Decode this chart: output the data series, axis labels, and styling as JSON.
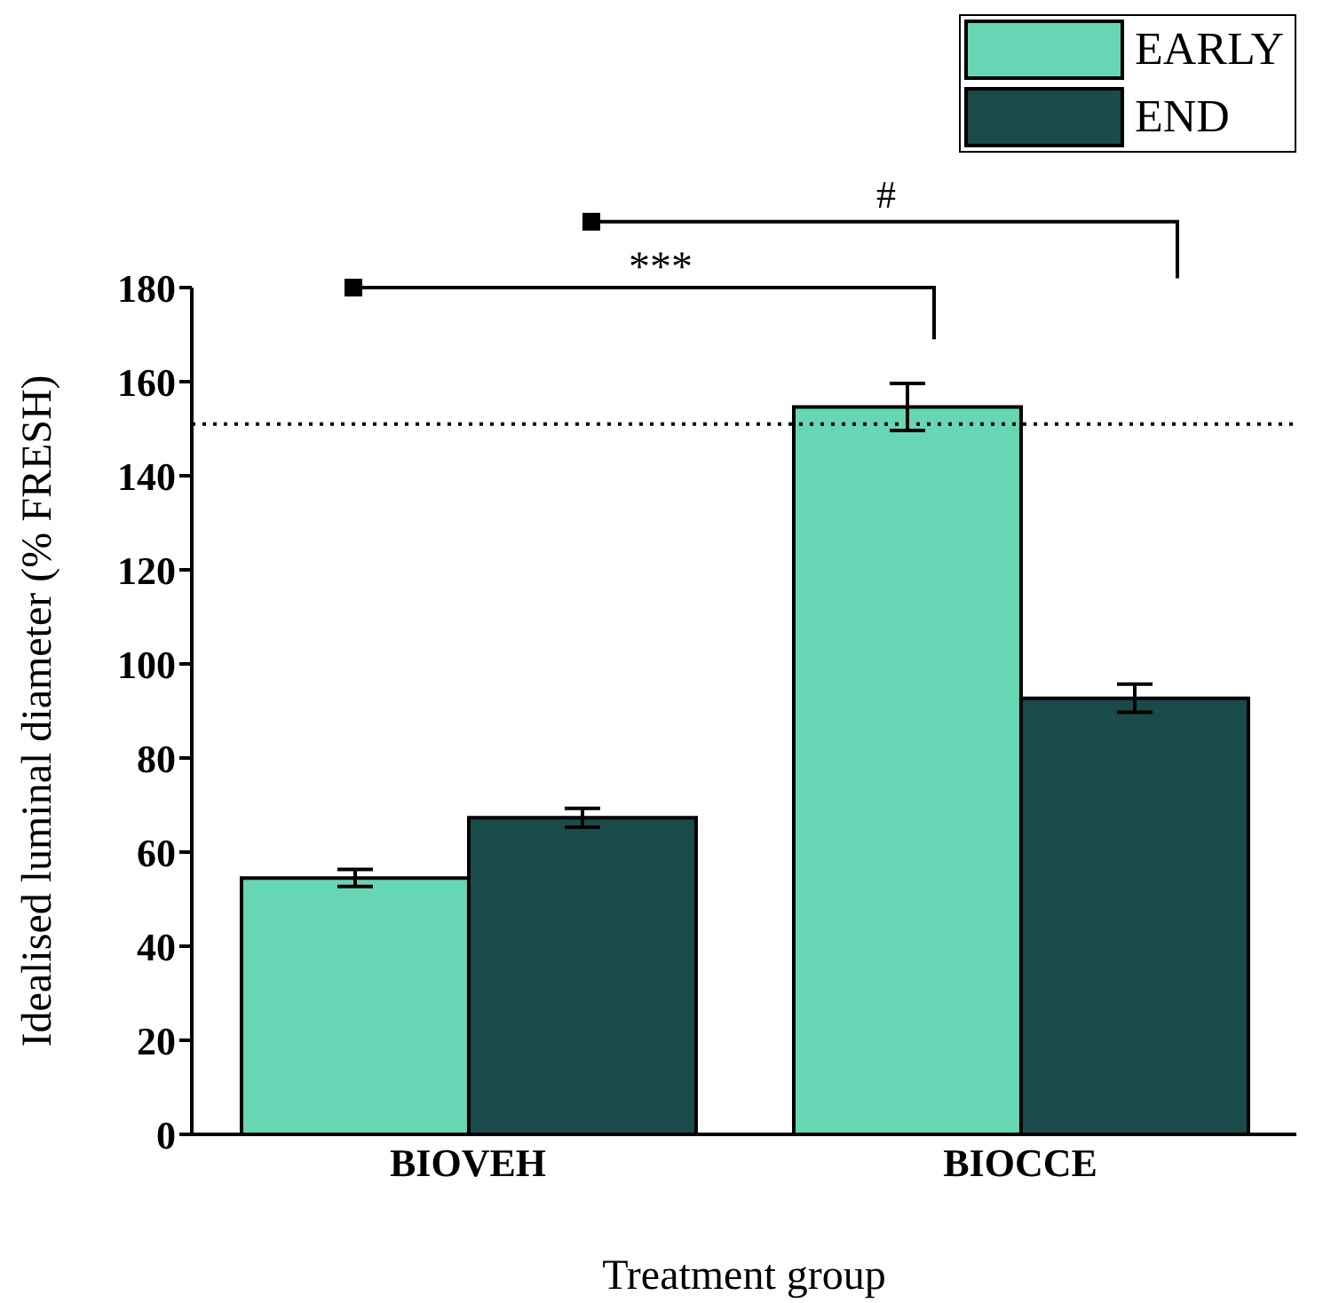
{
  "chart_data": {
    "type": "bar",
    "xlabel": "Treatment group",
    "ylabel": "Idealised luminal diameter (% FRESH)",
    "categories": [
      "BIOVEH",
      "BIOCCE"
    ],
    "series": [
      {
        "name": "EARLY",
        "color": "#66d6b4",
        "values": [
          54.5,
          154.6
        ],
        "errors": [
          1.8,
          5
        ]
      },
      {
        "name": "END",
        "color": "#1b4a4a",
        "values": [
          67.3,
          92.7
        ],
        "errors": [
          2,
          3
        ]
      }
    ],
    "ylim": [
      0,
      180
    ],
    "yticks": [
      0,
      20,
      40,
      60,
      80,
      100,
      120,
      140,
      160,
      180
    ],
    "ref_lines": [
      {
        "axis": "y",
        "value": 151,
        "color": "#000000",
        "line_style": "dotted"
      }
    ],
    "annotations": [
      "***",
      "#"
    ],
    "legend": "top right"
  }
}
